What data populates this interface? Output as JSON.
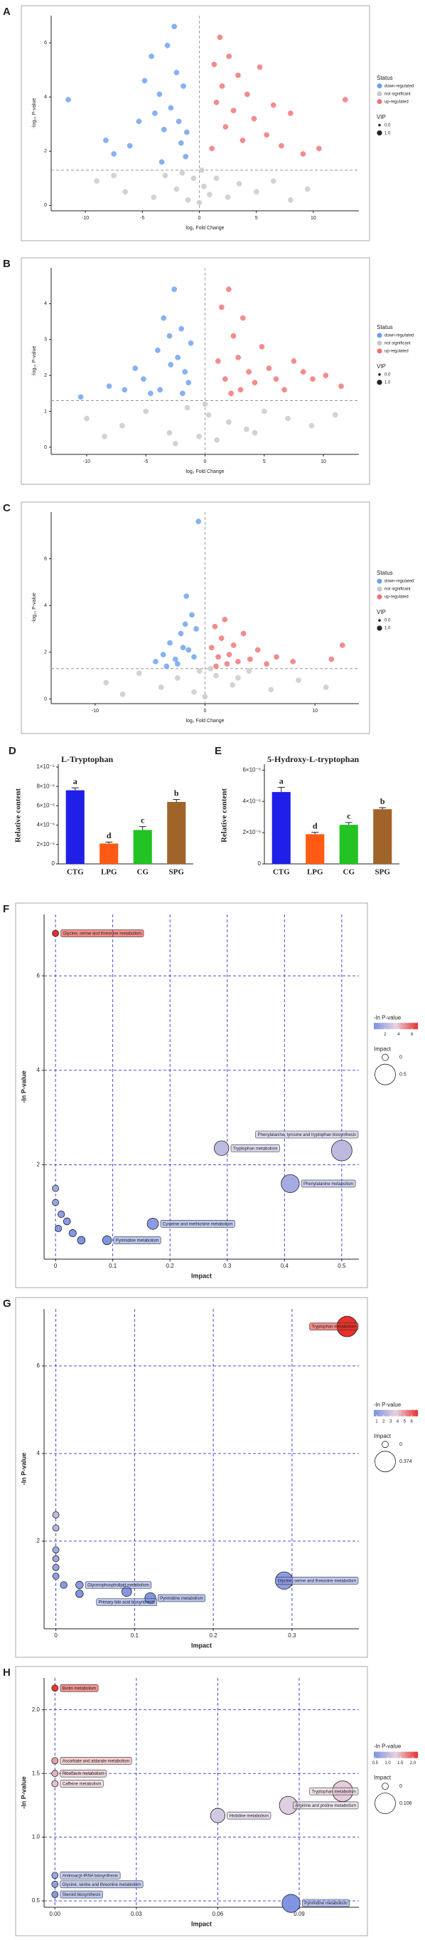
{
  "chart_data": [
    {
      "type": "scatter",
      "panel": "A",
      "x_label": "log₂ Fold Change",
      "y_label": "-log₁₀ P-value",
      "xlim": [
        -13,
        14
      ],
      "ylim": [
        -0.2,
        7
      ],
      "xticks": [
        -10,
        -5,
        0,
        5,
        10
      ],
      "yticks": [
        0,
        2,
        4,
        6
      ],
      "threshold_x": 0,
      "threshold_y": 1.3,
      "legend_title": "Status",
      "size_title": "VIP",
      "size_legend": [
        {
          "value": 0,
          "label": "0.0"
        },
        {
          "value": 1,
          "label": "1.0"
        }
      ],
      "series": [
        {
          "name": "down-regulated",
          "color": "#6a9ef0",
          "x": [
            -11.5,
            -8.2,
            -7.5,
            -6.1,
            -5.3,
            -4.8,
            -4.2,
            -3.9,
            -3.5,
            -3.1,
            -2.8,
            -2.5,
            -2.2,
            -2,
            -1.8,
            -1.6,
            -1.4,
            -1.2,
            -1.1,
            -3.3
          ],
          "y": [
            3.9,
            2.4,
            1.9,
            2.2,
            3.1,
            4.6,
            5.5,
            3.4,
            4.1,
            2.8,
            5.9,
            3.6,
            6.6,
            4.9,
            3.1,
            2.3,
            4.4,
            1.8,
            2.7,
            1.6
          ]
        },
        {
          "name": "not significant",
          "color": "#c8c8c8",
          "x": [
            -9,
            -6.5,
            -4,
            -3,
            -2,
            -1,
            -0.5,
            0,
            0.4,
            0.9,
            1.5,
            2.5,
            3.5,
            5,
            6.5,
            8,
            9.5,
            -7.5,
            -1.5,
            0.2
          ],
          "y": [
            0.9,
            0.5,
            0.3,
            1.1,
            0.6,
            0.2,
            1.0,
            0.1,
            0.7,
            0.4,
            1.0,
            0.3,
            0.8,
            0.5,
            0.9,
            0.2,
            0.6,
            1.1,
            1.2,
            1.3
          ]
        },
        {
          "name": "up-regulated",
          "color": "#f07070",
          "x": [
            1.1,
            1.3,
            1.5,
            1.8,
            2,
            2.3,
            2.6,
            3,
            3.4,
            3.8,
            4.2,
            4.8,
            5.3,
            5.9,
            6.5,
            7.2,
            8,
            9.1,
            10.5,
            12.8
          ],
          "y": [
            2.1,
            5.2,
            3.8,
            6.2,
            4.4,
            2.9,
            5.5,
            3.5,
            4.8,
            2.4,
            4.1,
            3.2,
            5.1,
            2.6,
            3.7,
            2.2,
            3.4,
            1.9,
            2.1,
            3.9
          ]
        }
      ]
    },
    {
      "type": "scatter",
      "panel": "B",
      "x_label": "log₂ Fold Change",
      "y_label": "-log₁₀ P-value",
      "xlim": [
        -13,
        13
      ],
      "ylim": [
        -0.2,
        5
      ],
      "xticks": [
        -10,
        -5,
        0,
        5,
        10
      ],
      "yticks": [
        0,
        1,
        2,
        3,
        4
      ],
      "threshold_x": 0,
      "threshold_y": 1.3,
      "legend_title": "Status",
      "size_title": "VIP",
      "size_legend": [
        {
          "value": 0,
          "label": "0.0"
        },
        {
          "value": 1,
          "label": "1.0"
        }
      ],
      "series": [
        {
          "name": "down-regulated",
          "color": "#6a9ef0",
          "x": [
            -10.5,
            -8.1,
            -6.8,
            -5.9,
            -5.2,
            -4.6,
            -4,
            -3.5,
            -3,
            -2.6,
            -2.3,
            -2,
            -1.7,
            -1.4,
            -1.2,
            -3.8,
            -2.9,
            -1.9
          ],
          "y": [
            1.4,
            1.7,
            1.6,
            2.2,
            1.9,
            1.5,
            2.7,
            3.6,
            3.1,
            4.4,
            2.5,
            3.3,
            2.1,
            1.8,
            2.9,
            1.6,
            2.3,
            1.5
          ]
        },
        {
          "name": "not significant",
          "color": "#c8c8c8",
          "x": [
            -10,
            -7,
            -5,
            -3,
            -1.5,
            -0.5,
            0.3,
            1,
            2,
            3.5,
            5,
            7,
            9,
            11,
            -8.5,
            0,
            -2.5,
            4.2
          ],
          "y": [
            0.8,
            0.6,
            1.0,
            0.4,
            1.1,
            0.3,
            0.9,
            0.2,
            0.7,
            0.5,
            1.0,
            0.8,
            0.6,
            0.9,
            0.3,
            1.2,
            0.1,
            0.4
          ]
        },
        {
          "name": "up-regulated",
          "color": "#f07070",
          "x": [
            1.1,
            1.4,
            1.7,
            2,
            2.4,
            2.8,
            3.2,
            3.7,
            4.2,
            4.8,
            5.4,
            6,
            6.7,
            7.5,
            8.3,
            9.1,
            10.2,
            11.5,
            2.2,
            3
          ],
          "y": [
            2.4,
            3.9,
            1.9,
            4.4,
            3.1,
            2.5,
            3.6,
            2.1,
            1.8,
            2.8,
            2.2,
            1.9,
            1.6,
            2.4,
            2.1,
            1.9,
            2.0,
            1.7,
            1.5,
            1.6
          ]
        }
      ]
    },
    {
      "type": "scatter",
      "panel": "C",
      "x_label": "log₂ Fold Change",
      "y_label": "-log₁₀ P-value",
      "xlim": [
        -14,
        14
      ],
      "ylim": [
        -0.2,
        8
      ],
      "xticks": [
        -10,
        0,
        10
      ],
      "yticks": [
        0,
        2,
        4,
        6
      ],
      "threshold_x": 0,
      "threshold_y": 1.3,
      "legend_title": "Status",
      "size_title": "VIP",
      "size_legend": [
        {
          "value": 0,
          "label": "0.0"
        },
        {
          "value": 1,
          "label": "1.0"
        }
      ],
      "series": [
        {
          "name": "down-regulated",
          "color": "#6a9ef0",
          "x": [
            -4.5,
            -3.8,
            -3.2,
            -2.7,
            -2.2,
            -1.8,
            -1.5,
            -1.2,
            -1,
            -0.6,
            -2.5,
            -1.7,
            -3.5,
            -0.8,
            -2
          ],
          "y": [
            1.6,
            1.9,
            2.4,
            1.7,
            2.8,
            3.2,
            2.1,
            3.6,
            1.8,
            7.6,
            1.5,
            4.4,
            1.4,
            3.0,
            2.2
          ]
        },
        {
          "name": "not significant",
          "color": "#c8c8c8",
          "x": [
            -9,
            -6,
            -4,
            -2.5,
            -1,
            0,
            1,
            2.5,
            4,
            6,
            8.5,
            11,
            -7.5,
            3,
            -0.5,
            0.5
          ],
          "y": [
            0.7,
            1.1,
            0.5,
            0.9,
            0.3,
            0.1,
            1.0,
            0.6,
            1.2,
            0.4,
            0.8,
            0.5,
            0.2,
            0.9,
            1.2,
            1.3
          ]
        },
        {
          "name": "up-regulated",
          "color": "#f07070",
          "x": [
            0.6,
            0.9,
            1.2,
            1.5,
            1.8,
            2.2,
            2.6,
            3,
            3.5,
            4.1,
            4.8,
            5.6,
            6.5,
            8,
            12.5,
            11.5,
            1,
            2
          ],
          "y": [
            2.2,
            3.1,
            1.8,
            2.6,
            3.4,
            1.9,
            2.3,
            1.6,
            2.8,
            1.7,
            2.1,
            1.5,
            1.8,
            1.6,
            2.3,
            1.7,
            1.4,
            1.5
          ]
        }
      ]
    },
    {
      "type": "bar",
      "panel": "D",
      "title": "L-Tryptophan",
      "y_label": "Relative content",
      "categories": [
        "CTG",
        "LPG",
        "CG",
        "SPG"
      ],
      "values": [
        7.6e-06,
        2.1e-06,
        3.5e-06,
        6.4e-06
      ],
      "errors": [
        2.5e-07,
        1.5e-07,
        3.5e-07,
        2.5e-07
      ],
      "letters": [
        "a",
        "d",
        "c",
        "b"
      ],
      "colors": [
        "#1f1fe8",
        "#ff5a14",
        "#22c322",
        "#a0642a"
      ],
      "ylim": [
        0,
        1e-05
      ],
      "yticks": [
        0,
        {
          "value": 2e-06,
          "label": "2×10⁻⁶"
        },
        {
          "value": 4e-06,
          "label": "4×10⁻⁶"
        },
        {
          "value": 6e-06,
          "label": "6×10⁻⁶"
        },
        {
          "value": 8e-06,
          "label": "8×10⁻⁶"
        },
        {
          "value": 1e-05,
          "label": "1×10⁻⁵"
        }
      ]
    },
    {
      "type": "bar",
      "panel": "E",
      "title": "5-Hydroxy-L-tryptophan",
      "y_label": "Relative content",
      "categories": [
        "CTG",
        "LPG",
        "CG",
        "SPG"
      ],
      "values": [
        4.6e-06,
        1.9e-06,
        2.5e-06,
        3.5e-06
      ],
      "errors": [
        3e-07,
        1.2e-07,
        1.5e-07,
        1e-07
      ],
      "letters": [
        "a",
        "d",
        "c",
        "b"
      ],
      "colors": [
        "#1f1fe8",
        "#ff5a14",
        "#22c322",
        "#a0642a"
      ],
      "ylim": [
        0,
        6.2e-06
      ],
      "yticks": [
        0,
        {
          "value": 2e-06,
          "label": "2×10⁻⁶"
        },
        {
          "value": 4e-06,
          "label": "4×10⁻⁶"
        },
        {
          "value": 6e-06,
          "label": "6×10⁻⁶"
        }
      ]
    },
    {
      "type": "bubble",
      "panel": "F",
      "x_label": "Impact",
      "y_label": "-ln P-value",
      "grid": true,
      "xlim": [
        -0.02,
        0.53
      ],
      "ylim": [
        0,
        7.3
      ],
      "xticks": [
        0,
        0.1,
        0.2,
        0.3,
        0.4,
        0.5
      ],
      "yticks": [
        2,
        4,
        6
      ],
      "x": [
        0,
        0.29,
        0.5,
        0.41,
        0.17,
        0.09,
        0,
        0,
        0.01,
        0.02,
        0.03,
        0.045,
        0.005
      ],
      "y": [
        6.9,
        2.35,
        2.3,
        1.6,
        0.75,
        0.4,
        1.5,
        1.2,
        0.95,
        0.8,
        0.55,
        0.4,
        0.65
      ],
      "names": [
        "Glycine, serine and threonine metabolism",
        "Tryptophan metabolism",
        "Phenylalanine, tyrosine and tryptophan biosynthesis",
        "Phenylalanine metabolism",
        "Cysteine and methionine metabolism",
        "Pyrimidine metabolism",
        null,
        null,
        null,
        null,
        null,
        null,
        null
      ],
      "color_scale": {
        "title": "-ln P-value",
        "clim": [
          0.3,
          6.9
        ],
        "ticks": [
          2,
          4,
          6
        ],
        "colors": [
          "#7b93e3",
          "#e6d3e0",
          "#e8312a"
        ]
      },
      "size_legend": {
        "title": "Impact",
        "ticks": [
          0,
          0.5
        ]
      }
    },
    {
      "type": "bubble",
      "panel": "G",
      "x_label": "Impact",
      "y_label": "-ln P-value",
      "grid": true,
      "xlim": [
        -0.015,
        0.385
      ],
      "ylim": [
        0,
        7.3
      ],
      "xticks": [
        0,
        0.1,
        0.2,
        0.3
      ],
      "yticks": [
        2,
        4,
        6
      ],
      "x": [
        0.37,
        0.29,
        0.03,
        0.09,
        0.12,
        0,
        0,
        0,
        0,
        0,
        0,
        0.01,
        0.03
      ],
      "y": [
        6.9,
        1.1,
        1.0,
        0.85,
        0.7,
        2.6,
        2.3,
        1.8,
        1.6,
        1.4,
        1.2,
        1.0,
        0.8
      ],
      "names": [
        "Tryptophan metabolism",
        "Glycine, serine and threonine metabolism",
        "Glycerophospholipid metabolism",
        "Primary bile acid biosynthesis",
        "Pyrimidine metabolism",
        null,
        null,
        null,
        null,
        null,
        null,
        null,
        null
      ],
      "color_scale": {
        "title": "-ln P-value",
        "clim": [
          0.6,
          6.9
        ],
        "ticks": [
          1,
          2,
          3,
          4,
          5,
          6
        ],
        "colors": [
          "#7b93e3",
          "#e6d3e0",
          "#e8312a"
        ]
      },
      "size_legend": {
        "title": "Impact",
        "ticks": [
          0,
          0.374
        ]
      }
    },
    {
      "type": "bubble",
      "panel": "H",
      "x_label": "Impact",
      "y_label": "-ln P-value",
      "grid": true,
      "xlim": [
        -0.004,
        0.112
      ],
      "ylim": [
        0.45,
        2.25
      ],
      "xticks": [
        {
          "value": 0,
          "label": "0.00"
        },
        {
          "value": 0.03,
          "label": "0.03"
        },
        {
          "value": 0.06,
          "label": "0.06"
        },
        {
          "value": 0.09,
          "label": "0.09"
        }
      ],
      "yticks": [
        0.5,
        {
          "value": 1,
          "label": "1.0"
        },
        1.5,
        {
          "value": 2,
          "label": "2.0"
        }
      ],
      "x": [
        0,
        0,
        0,
        0,
        0.106,
        0.086,
        0.06,
        0,
        0,
        0,
        0.087
      ],
      "y": [
        2.17,
        1.6,
        1.5,
        1.42,
        1.36,
        1.25,
        1.17,
        0.7,
        0.63,
        0.55,
        0.48
      ],
      "names": [
        "Biotin metabolism",
        "Ascorbate and aldarate metabolism",
        "Riboflavin metabolism",
        "Caffeine metabolism",
        "Tryptophan metabolism",
        "Arginine and proline metabolism",
        "Histidine metabolism",
        "Aminoacyl-tRNA biosynthesis",
        "Glycine, serine and threonine metabolism",
        "Steroid biosynthesis",
        "Pyrimidine metabolism"
      ],
      "color_scale": {
        "title": "-ln P-value",
        "clim": [
          0.45,
          2.2
        ],
        "ticks": [
          0.5,
          {
            "value": 1,
            "label": "1.0"
          },
          1.5,
          {
            "value": 2,
            "label": "2.0"
          }
        ],
        "colors": [
          "#7b93e3",
          "#e6d3e0",
          "#e8312a"
        ]
      },
      "size_legend": {
        "title": "Impact",
        "ticks": [
          0,
          0.106
        ]
      }
    }
  ]
}
